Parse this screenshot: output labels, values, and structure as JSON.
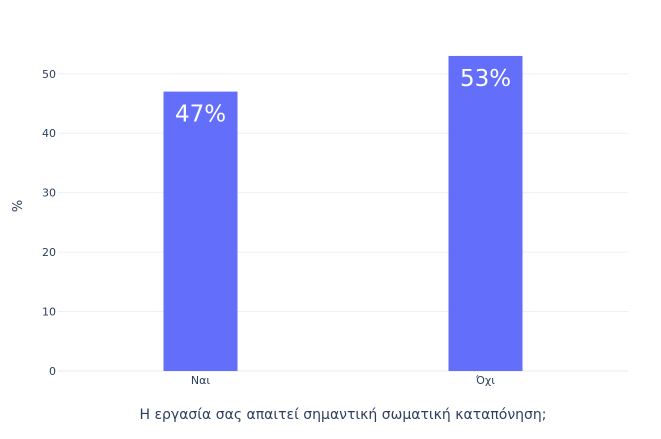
{
  "chart_data": {
    "type": "bar",
    "categories": [
      "Ναι",
      "Όχι"
    ],
    "values": [
      47,
      53
    ],
    "data_labels": [
      "47%",
      "53%"
    ],
    "xlabel": "Η εργασία σας απαιτεί σημαντική σωματική καταπόνηση;",
    "ylabel": "%",
    "ylim": [
      0,
      54
    ],
    "yticks": [
      0,
      10,
      20,
      30,
      40,
      50
    ],
    "ytick_labels": [
      "0",
      "10",
      "20",
      "30",
      "40",
      "50"
    ],
    "grid": true,
    "legend": "none"
  },
  "colors": {
    "bar": "#636efa",
    "bar_label": "#ffffff",
    "grid": "#ebf0f8",
    "tick_text": "#2a3f5f",
    "axis_title": "#2a3f5f"
  }
}
